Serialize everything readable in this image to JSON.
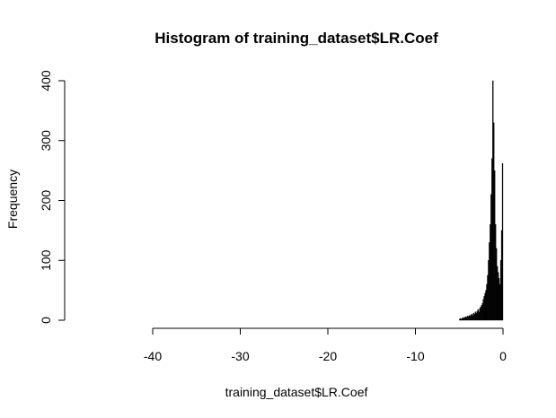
{
  "chart_data": {
    "type": "histogram",
    "title": "Histogram of training_dataset$LR.Coef",
    "x_label": "training_dataset$LR.Coef",
    "y_label": "Frequency",
    "bins": [
      -5,
      -4.9,
      -4.8,
      -4.7,
      -4.6,
      -4.5,
      -4.4,
      -4.3,
      -4.2,
      -4.1,
      -4,
      -3.9,
      -3.8,
      -3.7,
      -3.6,
      -3.5,
      -3.4,
      -3.3,
      -3.2,
      -3.1,
      -3,
      -2.9,
      -2.8,
      -2.7,
      -2.6,
      -2.5,
      -2.4,
      -2.3,
      -2.2,
      -2.1,
      -2,
      -1.9,
      -1.8,
      -1.7,
      -1.6,
      -1.5,
      -1.4,
      -1.3,
      -1.2,
      -1.1,
      -1,
      -0.9,
      -0.8,
      -0.7,
      -0.6,
      -0.5,
      -0.4,
      -0.3,
      -0.2,
      -0.1,
      0
    ],
    "values": [
      2,
      3,
      2,
      4,
      3,
      5,
      4,
      6,
      5,
      7,
      6,
      8,
      7,
      9,
      10,
      8,
      12,
      10,
      14,
      12,
      15,
      18,
      14,
      20,
      22,
      25,
      28,
      35,
      40,
      45,
      50,
      60,
      75,
      100,
      130,
      160,
      210,
      270,
      400,
      330,
      250,
      160,
      120,
      90,
      80,
      70,
      60,
      100,
      150,
      262
    ],
    "color": "#000000",
    "xlim": [
      -40,
      0
    ],
    "xticks": [
      -40,
      -30,
      -20,
      -10,
      0
    ],
    "ylim": [
      0,
      400
    ],
    "yticks": [
      0,
      100,
      200,
      300,
      400
    ]
  }
}
